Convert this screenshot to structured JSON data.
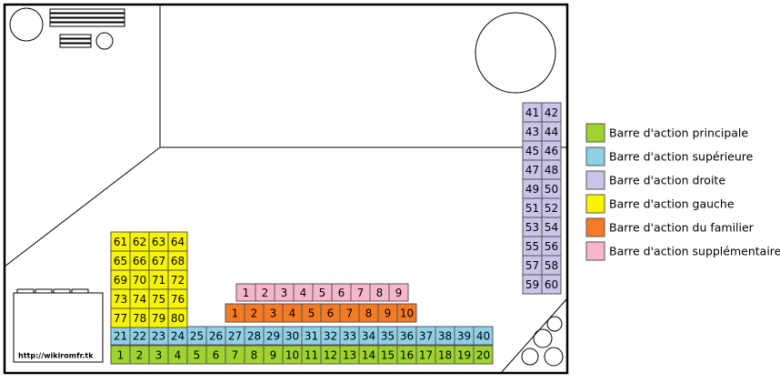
{
  "url": "http://wikiromfr.tk",
  "legend": [
    {
      "label": "Barre d'action principale",
      "color": "#9fd42e"
    },
    {
      "label": "Barre d'action supérieure",
      "color": "#8ed0e6"
    },
    {
      "label": "Barre d'action droite",
      "color": "#c9c4e8"
    },
    {
      "label": "Barre d'action gauche",
      "color": "#f7f400"
    },
    {
      "label": "Barre d'action du familier",
      "color": "#f47a24"
    },
    {
      "label": "Barre d'action supplémentaire",
      "color": "#f8b6cc"
    }
  ],
  "bars": {
    "main": [
      1,
      2,
      3,
      4,
      5,
      6,
      7,
      8,
      9,
      10,
      11,
      12,
      13,
      14,
      15,
      16,
      17,
      18,
      19,
      20
    ],
    "upper": [
      21,
      22,
      23,
      24,
      25,
      26,
      27,
      28,
      29,
      30,
      31,
      32,
      33,
      34,
      35,
      36,
      37,
      38,
      39,
      40
    ],
    "right": [
      41,
      42,
      43,
      44,
      45,
      46,
      47,
      48,
      49,
      50,
      51,
      52,
      53,
      54,
      55,
      56,
      57,
      58,
      59,
      60
    ],
    "left": [
      61,
      62,
      63,
      64,
      65,
      66,
      67,
      68,
      69,
      70,
      71,
      72,
      73,
      74,
      75,
      76,
      77,
      78,
      79,
      80
    ],
    "pet": [
      1,
      2,
      3,
      4,
      5,
      6,
      7,
      8,
      9,
      10
    ],
    "extra": [
      1,
      2,
      3,
      4,
      5,
      6,
      7,
      8,
      9
    ]
  }
}
